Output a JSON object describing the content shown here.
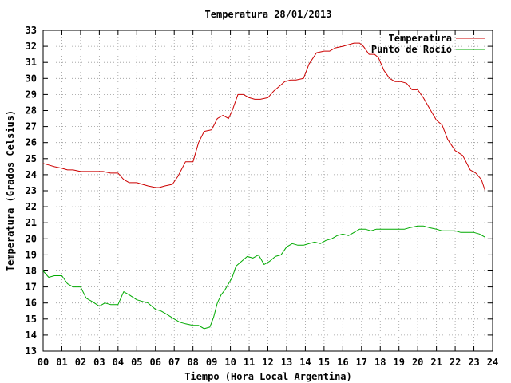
{
  "chart_data": {
    "type": "line",
    "title": "Temperatura 28/01/2013",
    "xlabel": "Tiempo (Hora Local Argentina)",
    "ylabel": "Temperatura (Grados Celsius)",
    "xlim": [
      0,
      24
    ],
    "ylim": [
      13,
      33
    ],
    "grid": true,
    "legend_position": "top-right",
    "x_ticks": [
      "00",
      "01",
      "02",
      "03",
      "04",
      "05",
      "06",
      "07",
      "08",
      "09",
      "10",
      "11",
      "12",
      "13",
      "14",
      "15",
      "16",
      "17",
      "18",
      "19",
      "20",
      "21",
      "22",
      "23",
      "24"
    ],
    "y_ticks": [
      13,
      14,
      15,
      16,
      17,
      18,
      19,
      20,
      21,
      22,
      23,
      24,
      25,
      26,
      27,
      28,
      29,
      30,
      31,
      32,
      33
    ],
    "series": [
      {
        "name": "Temperatura",
        "color": "#cc0000",
        "x": [
          0.0,
          0.3,
          0.6,
          1.0,
          1.3,
          1.6,
          2.0,
          2.4,
          2.8,
          3.2,
          3.6,
          4.0,
          4.3,
          4.6,
          5.0,
          5.3,
          5.6,
          6.0,
          6.2,
          6.5,
          6.9,
          7.2,
          7.6,
          8.0,
          8.3,
          8.6,
          9.0,
          9.3,
          9.6,
          9.9,
          10.1,
          10.4,
          10.7,
          11.0,
          11.3,
          11.6,
          12.0,
          12.3,
          12.6,
          12.9,
          13.2,
          13.5,
          13.9,
          14.2,
          14.6,
          15.0,
          15.3,
          15.6,
          16.0,
          16.3,
          16.6,
          16.9,
          17.1,
          17.4,
          17.7,
          17.9,
          18.2,
          18.5,
          18.8,
          19.1,
          19.4,
          19.7,
          20.0,
          20.3,
          20.6,
          21.0,
          21.3,
          21.6,
          22.0,
          22.4,
          22.8,
          23.1,
          23.4,
          23.6
        ],
        "y": [
          24.7,
          24.6,
          24.5,
          24.4,
          24.3,
          24.3,
          24.2,
          24.2,
          24.2,
          24.2,
          24.1,
          24.1,
          23.7,
          23.5,
          23.5,
          23.4,
          23.3,
          23.2,
          23.2,
          23.3,
          23.4,
          23.9,
          24.8,
          24.8,
          26.0,
          26.7,
          26.8,
          27.5,
          27.7,
          27.5,
          28.0,
          29.0,
          29.0,
          28.8,
          28.7,
          28.7,
          28.8,
          29.2,
          29.5,
          29.8,
          29.9,
          29.9,
          30.0,
          30.9,
          31.6,
          31.7,
          31.7,
          31.9,
          32.0,
          32.1,
          32.2,
          32.2,
          32.0,
          31.5,
          31.5,
          31.3,
          30.5,
          30.0,
          29.8,
          29.8,
          29.7,
          29.3,
          29.3,
          28.8,
          28.2,
          27.4,
          27.1,
          26.2,
          25.5,
          25.2,
          24.3,
          24.1,
          23.7,
          23.0
        ]
      },
      {
        "name": "Punto de Rocío",
        "color": "#00aa00",
        "x": [
          0.0,
          0.3,
          0.6,
          1.0,
          1.3,
          1.6,
          2.0,
          2.3,
          2.6,
          3.0,
          3.3,
          3.6,
          4.0,
          4.3,
          4.6,
          5.0,
          5.3,
          5.6,
          6.0,
          6.3,
          6.6,
          7.0,
          7.3,
          7.6,
          8.0,
          8.3,
          8.6,
          8.9,
          9.1,
          9.3,
          9.5,
          9.7,
          9.9,
          10.1,
          10.3,
          10.6,
          10.9,
          11.2,
          11.5,
          11.8,
          12.1,
          12.4,
          12.7,
          13.0,
          13.3,
          13.6,
          13.9,
          14.2,
          14.5,
          14.8,
          15.1,
          15.4,
          15.7,
          16.0,
          16.3,
          16.6,
          16.9,
          17.2,
          17.5,
          17.8,
          18.1,
          18.4,
          18.7,
          19.0,
          19.3,
          19.6,
          20.0,
          20.3,
          20.6,
          21.0,
          21.3,
          21.6,
          22.0,
          22.3,
          22.6,
          23.0,
          23.3,
          23.6
        ],
        "y": [
          18.0,
          17.6,
          17.7,
          17.7,
          17.2,
          17.0,
          17.0,
          16.3,
          16.1,
          15.8,
          16.0,
          15.9,
          15.9,
          16.7,
          16.5,
          16.2,
          16.1,
          16.0,
          15.6,
          15.5,
          15.3,
          15.0,
          14.8,
          14.7,
          14.6,
          14.6,
          14.4,
          14.5,
          15.1,
          16.0,
          16.5,
          16.8,
          17.2,
          17.6,
          18.3,
          18.6,
          18.9,
          18.8,
          19.0,
          18.4,
          18.6,
          18.9,
          19.0,
          19.5,
          19.7,
          19.6,
          19.6,
          19.7,
          19.8,
          19.7,
          19.9,
          20.0,
          20.2,
          20.3,
          20.2,
          20.4,
          20.6,
          20.6,
          20.5,
          20.6,
          20.6,
          20.6,
          20.6,
          20.6,
          20.6,
          20.7,
          20.8,
          20.8,
          20.7,
          20.6,
          20.5,
          20.5,
          20.5,
          20.4,
          20.4,
          20.4,
          20.3,
          20.1
        ]
      }
    ]
  }
}
